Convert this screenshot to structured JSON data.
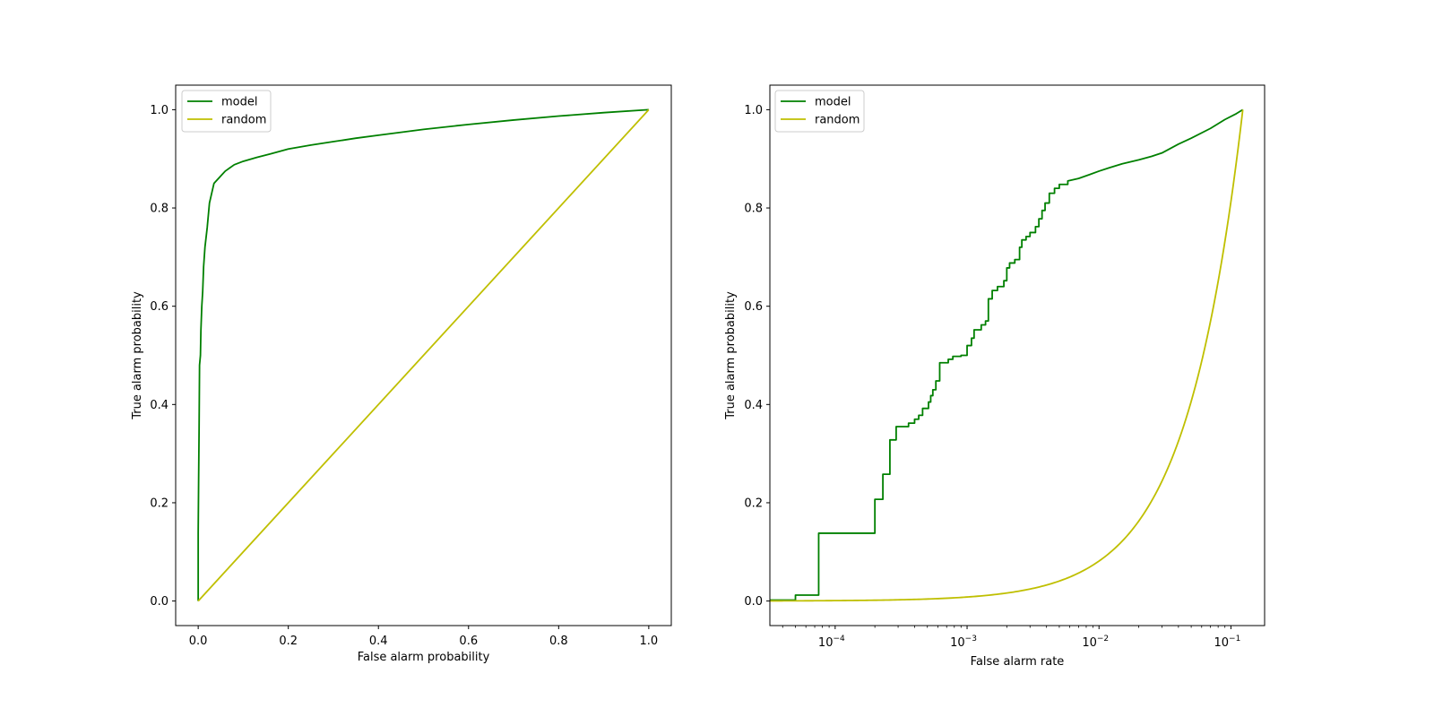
{
  "colors": {
    "model": "#008000",
    "random": "#bfbf00",
    "axes": "#000000",
    "background": "#ffffff"
  },
  "chart_data": [
    {
      "type": "line",
      "title": "",
      "xlabel": "False alarm probability",
      "ylabel": "True alarm probability",
      "xscale": "linear",
      "xlim": [
        -0.05,
        1.05
      ],
      "ylim": [
        -0.05,
        1.05
      ],
      "xticks": [
        0.0,
        0.2,
        0.4,
        0.6,
        0.8,
        1.0
      ],
      "xticklabels": [
        "0.0",
        "0.2",
        "0.4",
        "0.6",
        "0.8",
        "1.0"
      ],
      "yticks": [
        0.0,
        0.2,
        0.4,
        0.6,
        0.8,
        1.0
      ],
      "yticklabels": [
        "0.0",
        "0.2",
        "0.4",
        "0.6",
        "0.8",
        "1.0"
      ],
      "grid": false,
      "legend": "upper-left",
      "series": [
        {
          "name": "model",
          "color": "#008000",
          "points": [
            [
              0,
              0
            ],
            [
              0,
              0.14
            ],
            [
              0.001,
              0.25
            ],
            [
              0.002,
              0.35
            ],
            [
              0.003,
              0.48
            ],
            [
              0.005,
              0.5
            ],
            [
              0.006,
              0.55
            ],
            [
              0.008,
              0.6
            ],
            [
              0.01,
              0.63
            ],
            [
              0.012,
              0.68
            ],
            [
              0.015,
              0.72
            ],
            [
              0.02,
              0.76
            ],
            [
              0.025,
              0.81
            ],
            [
              0.03,
              0.83
            ],
            [
              0.035,
              0.85
            ],
            [
              0.05,
              0.865
            ],
            [
              0.06,
              0.875
            ],
            [
              0.08,
              0.888
            ],
            [
              0.1,
              0.895
            ],
            [
              0.13,
              0.903
            ],
            [
              0.16,
              0.91
            ],
            [
              0.2,
              0.92
            ],
            [
              0.25,
              0.928
            ],
            [
              0.3,
              0.935
            ],
            [
              0.35,
              0.942
            ],
            [
              0.4,
              0.948
            ],
            [
              0.45,
              0.954
            ],
            [
              0.5,
              0.96
            ],
            [
              0.6,
              0.97
            ],
            [
              0.7,
              0.979
            ],
            [
              0.8,
              0.987
            ],
            [
              0.9,
              0.994
            ],
            [
              1.0,
              1.0
            ]
          ]
        },
        {
          "name": "random",
          "color": "#bfbf00",
          "points": [
            [
              0,
              0
            ],
            [
              1,
              1
            ]
          ]
        }
      ]
    },
    {
      "type": "line",
      "title": "",
      "xlabel": "False alarm rate",
      "ylabel": "True alarm probability",
      "xscale": "log",
      "xlim": [
        3.2e-05,
        0.18
      ],
      "ylim": [
        -0.05,
        1.05
      ],
      "xticks": [
        0.0001,
        0.001,
        0.01,
        0.1
      ],
      "xticklabels": [
        "10",
        "10",
        "10",
        "10"
      ],
      "xtickexponents": [
        "−4",
        "−3",
        "−2",
        "−1"
      ],
      "yticks": [
        0.0,
        0.2,
        0.4,
        0.6,
        0.8,
        1.0
      ],
      "yticklabels": [
        "0.0",
        "0.2",
        "0.4",
        "0.6",
        "0.8",
        "1.0"
      ],
      "grid": false,
      "legend": "upper-left",
      "series": [
        {
          "name": "model",
          "color": "#008000",
          "steps": [
            [
              3.2e-05,
              0.002
            ],
            [
              5e-05,
              0.002
            ],
            [
              5e-05,
              0.012
            ],
            [
              7.5e-05,
              0.012
            ],
            [
              7.5e-05,
              0.138
            ],
            [
              0.0002,
              0.138
            ],
            [
              0.0002,
              0.207
            ],
            [
              0.00023,
              0.207
            ],
            [
              0.00023,
              0.258
            ],
            [
              0.00026,
              0.258
            ],
            [
              0.00026,
              0.328
            ],
            [
              0.00029,
              0.328
            ],
            [
              0.00029,
              0.355
            ],
            [
              0.00036,
              0.355
            ],
            [
              0.00036,
              0.362
            ],
            [
              0.0004,
              0.362
            ],
            [
              0.0004,
              0.37
            ],
            [
              0.00043,
              0.37
            ],
            [
              0.00043,
              0.378
            ],
            [
              0.00046,
              0.378
            ],
            [
              0.00046,
              0.392
            ],
            [
              0.00051,
              0.392
            ],
            [
              0.00051,
              0.405
            ],
            [
              0.00053,
              0.405
            ],
            [
              0.00053,
              0.418
            ],
            [
              0.00055,
              0.418
            ],
            [
              0.00055,
              0.43
            ],
            [
              0.00058,
              0.43
            ],
            [
              0.00058,
              0.448
            ],
            [
              0.00062,
              0.448
            ],
            [
              0.00062,
              0.485
            ],
            [
              0.00072,
              0.485
            ],
            [
              0.00072,
              0.492
            ],
            [
              0.00078,
              0.492
            ],
            [
              0.00078,
              0.498
            ],
            [
              0.0009,
              0.498
            ],
            [
              0.0009,
              0.5
            ],
            [
              0.001,
              0.5
            ],
            [
              0.001,
              0.52
            ],
            [
              0.00108,
              0.52
            ],
            [
              0.00108,
              0.535
            ],
            [
              0.00113,
              0.535
            ],
            [
              0.00113,
              0.552
            ],
            [
              0.00128,
              0.552
            ],
            [
              0.00128,
              0.562
            ],
            [
              0.00138,
              0.562
            ],
            [
              0.00138,
              0.57
            ],
            [
              0.00145,
              0.57
            ],
            [
              0.00145,
              0.615
            ],
            [
              0.00155,
              0.615
            ],
            [
              0.00155,
              0.632
            ],
            [
              0.0017,
              0.632
            ],
            [
              0.0017,
              0.64
            ],
            [
              0.0019,
              0.64
            ],
            [
              0.0019,
              0.652
            ],
            [
              0.002,
              0.652
            ],
            [
              0.002,
              0.678
            ],
            [
              0.0021,
              0.678
            ],
            [
              0.0021,
              0.688
            ],
            [
              0.0023,
              0.688
            ],
            [
              0.0023,
              0.695
            ],
            [
              0.0025,
              0.695
            ],
            [
              0.0025,
              0.72
            ],
            [
              0.0026,
              0.72
            ],
            [
              0.0026,
              0.735
            ],
            [
              0.0028,
              0.735
            ],
            [
              0.0028,
              0.742
            ],
            [
              0.003,
              0.742
            ],
            [
              0.003,
              0.75
            ],
            [
              0.0033,
              0.75
            ],
            [
              0.0033,
              0.762
            ],
            [
              0.0035,
              0.762
            ],
            [
              0.0035,
              0.778
            ],
            [
              0.0037,
              0.778
            ],
            [
              0.0037,
              0.795
            ],
            [
              0.0039,
              0.795
            ],
            [
              0.0039,
              0.81
            ],
            [
              0.0042,
              0.81
            ],
            [
              0.0042,
              0.83
            ],
            [
              0.0046,
              0.83
            ],
            [
              0.0046,
              0.84
            ],
            [
              0.005,
              0.84
            ],
            [
              0.005,
              0.848
            ],
            [
              0.0058,
              0.848
            ],
            [
              0.0058,
              0.855
            ],
            [
              0.007,
              0.86
            ],
            [
              0.0085,
              0.868
            ],
            [
              0.01,
              0.875
            ],
            [
              0.012,
              0.882
            ],
            [
              0.015,
              0.89
            ],
            [
              0.02,
              0.898
            ],
            [
              0.025,
              0.905
            ],
            [
              0.03,
              0.912
            ],
            [
              0.04,
              0.93
            ],
            [
              0.05,
              0.942
            ],
            [
              0.07,
              0.962
            ],
            [
              0.09,
              0.98
            ],
            [
              0.11,
              0.992
            ],
            [
              0.123,
              1.0
            ]
          ]
        },
        {
          "name": "random",
          "color": "#bfbf00",
          "function": "linear",
          "xrange": [
            3.2e-05,
            0.123
          ]
        }
      ]
    }
  ]
}
